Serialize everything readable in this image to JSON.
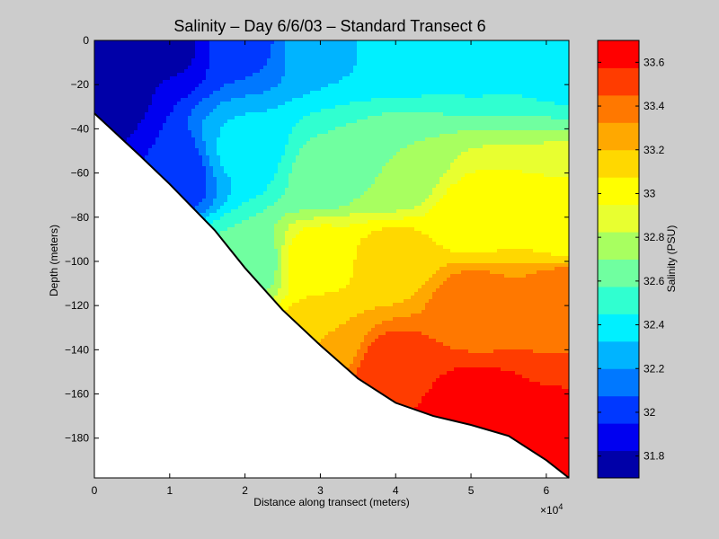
{
  "chart_data": {
    "type": "heatmap",
    "subtype": "filled-contour",
    "title": "Salinity – Day 6/6/03 – Standard Transect 6",
    "xlabel": "Distance along transect (meters)",
    "ylabel": "Depth (meters)",
    "x_multiplier_label": "×10",
    "x_multiplier_exponent": "4",
    "xlim": [
      0,
      63000
    ],
    "ylim": [
      -198,
      0
    ],
    "grid": false,
    "x_ticks": [
      0,
      10000,
      20000,
      30000,
      40000,
      50000,
      60000
    ],
    "x_tick_labels": [
      "0",
      "1",
      "2",
      "3",
      "4",
      "5",
      "6"
    ],
    "y_ticks": [
      0,
      -20,
      -40,
      -60,
      -80,
      -100,
      -120,
      -140,
      -160,
      -180
    ],
    "y_tick_labels": [
      "0",
      "−20",
      "−40",
      "−60",
      "−80",
      "−100",
      "−120",
      "−140",
      "−160",
      "−180"
    ],
    "bathymetry": {
      "x": [
        0,
        6000,
        10000,
        16000,
        20000,
        25000,
        30000,
        35000,
        40000,
        45000,
        50000,
        55000,
        60000,
        63000
      ],
      "depth": [
        -33,
        -52,
        -65,
        -86,
        -103,
        -122,
        -138,
        -153,
        -164,
        -170,
        -174,
        -179,
        -190,
        -198
      ]
    },
    "colorbar": {
      "label": "Salinity (PSU)",
      "range": [
        31.7,
        33.7
      ],
      "levels": [
        31.7,
        31.825,
        31.95,
        32.075,
        32.2,
        32.325,
        32.45,
        32.575,
        32.7,
        32.825,
        32.95,
        33.075,
        33.2,
        33.325,
        33.45,
        33.575,
        33.7
      ],
      "colors": [
        "#0000a8",
        "#0000f0",
        "#0038ff",
        "#0078ff",
        "#00b4ff",
        "#00f0ff",
        "#30ffd0",
        "#70ffa0",
        "#a8ff60",
        "#e8ff30",
        "#ffff00",
        "#ffd800",
        "#ffa800",
        "#ff7800",
        "#ff3c00",
        "#ff0000",
        "#c00000"
      ],
      "ticks": [
        31.8,
        32,
        32.2,
        32.4,
        32.6,
        32.8,
        33,
        33.2,
        33.4,
        33.6
      ],
      "tick_labels": [
        "31.8",
        "32",
        "32.2",
        "32.4",
        "32.6",
        "32.8",
        "33",
        "33.2",
        "33.4",
        "33.6"
      ]
    },
    "salinity_samples": [
      {
        "x": 0,
        "depth": 0,
        "psu": 31.72
      },
      {
        "x": 0,
        "depth": -30,
        "psu": 31.74
      },
      {
        "x": 10000,
        "depth": 0,
        "psu": 31.8
      },
      {
        "x": 10000,
        "depth": -60,
        "psu": 31.95
      },
      {
        "x": 20000,
        "depth": 0,
        "psu": 32.05
      },
      {
        "x": 20000,
        "depth": -50,
        "psu": 32.35
      },
      {
        "x": 20000,
        "depth": -100,
        "psu": 32.6
      },
      {
        "x": 30000,
        "depth": 0,
        "psu": 32.3
      },
      {
        "x": 30000,
        "depth": -60,
        "psu": 32.6
      },
      {
        "x": 30000,
        "depth": -100,
        "psu": 33.05
      },
      {
        "x": 30000,
        "depth": -135,
        "psu": 33.2
      },
      {
        "x": 40000,
        "depth": 0,
        "psu": 32.35
      },
      {
        "x": 40000,
        "depth": -60,
        "psu": 32.7
      },
      {
        "x": 40000,
        "depth": -100,
        "psu": 33.15
      },
      {
        "x": 40000,
        "depth": -150,
        "psu": 33.55
      },
      {
        "x": 50000,
        "depth": 0,
        "psu": 32.4
      },
      {
        "x": 50000,
        "depth": -80,
        "psu": 33.0
      },
      {
        "x": 50000,
        "depth": -120,
        "psu": 33.4
      },
      {
        "x": 50000,
        "depth": -170,
        "psu": 33.7
      },
      {
        "x": 63000,
        "depth": 0,
        "psu": 32.35
      },
      {
        "x": 63000,
        "depth": -80,
        "psu": 32.95
      },
      {
        "x": 63000,
        "depth": -120,
        "psu": 33.45
      },
      {
        "x": 63000,
        "depth": -190,
        "psu": 33.7
      }
    ]
  }
}
